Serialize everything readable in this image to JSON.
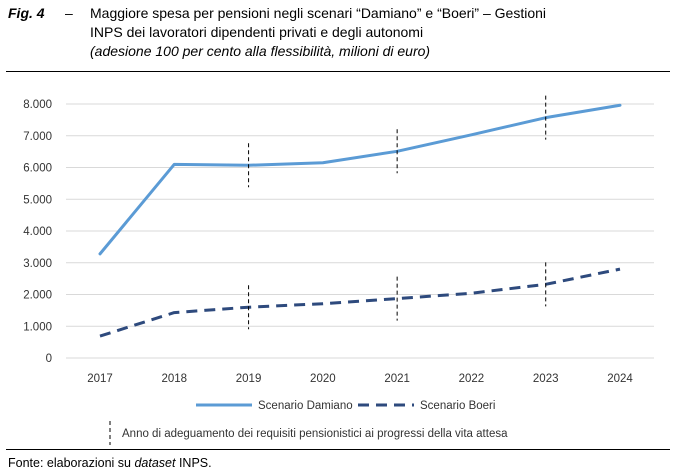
{
  "figure": {
    "label": "Fig. 4",
    "separator": "–",
    "title_line1": "Maggiore spesa per pensioni negli scenari “Damiano” e “Boeri” – Gestioni",
    "title_line2": "INPS dei lavoratori dipendenti privati e degli autonomi",
    "subtitle": "(adesione 100 per cento alla flessibilità, milioni di euro)",
    "source_prefix": "Fonte: elaborazioni su ",
    "source_dataset": "dataset",
    "source_suffix": " INPS."
  },
  "chart_data": {
    "type": "line",
    "x": [
      2017,
      2018,
      2019,
      2020,
      2021,
      2022,
      2023,
      2024
    ],
    "series": [
      {
        "name": "Scenario Damiano",
        "style": "solid",
        "color": "#5B9BD5",
        "values": [
          3280,
          6100,
          6070,
          6150,
          6510,
          7030,
          7570,
          7960
        ]
      },
      {
        "name": "Scenario Boeri",
        "style": "dashed",
        "color": "#2E4A7D",
        "values": [
          690,
          1430,
          1600,
          1710,
          1870,
          2040,
          2320,
          2800
        ]
      }
    ],
    "ylim": [
      0,
      8000
    ],
    "yticks": [
      0,
      1000,
      2000,
      3000,
      4000,
      5000,
      6000,
      7000,
      8000
    ],
    "ytick_labels": [
      "0",
      "1.000",
      "2.000",
      "3.000",
      "4.000",
      "5.000",
      "6.000",
      "7.000",
      "8.000"
    ],
    "xtick_labels": [
      "2017",
      "2018",
      "2019",
      "2020",
      "2021",
      "2022",
      "2023",
      "2024"
    ],
    "grid": true,
    "legend_position": "bottom",
    "markers": {
      "years": [
        2019,
        2021,
        2023
      ],
      "legend_label": "Anno di adeguamento dei requisiti pensionistici ai progressi della vita attesa"
    }
  }
}
